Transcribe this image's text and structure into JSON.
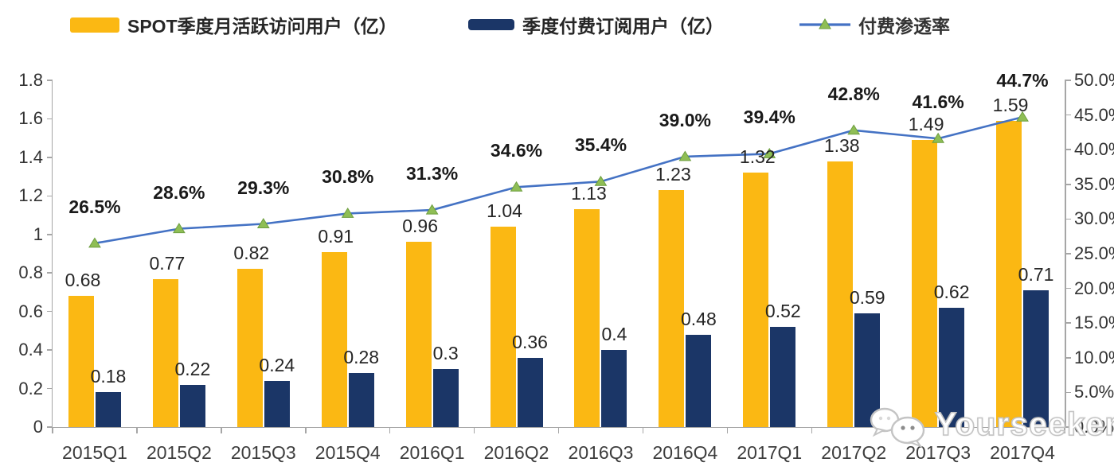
{
  "colors": {
    "bar_mau": "#FBB813",
    "bar_subs": "#1B3667",
    "line_penetration": "#4472C4",
    "marker_fill": "#8FBE55",
    "marker_stroke": "#6D9E3F",
    "axis": "#A6A6A6"
  },
  "watermark": {
    "label": "Yourseeker",
    "icon": "wechat-chat-bubbles"
  },
  "chart_data": {
    "type": "bar",
    "combo": "dual-axis bar + line",
    "grid": false,
    "legend_position": "top",
    "categories": [
      "2015Q1",
      "2015Q2",
      "2015Q3",
      "2015Q4",
      "2016Q1",
      "2016Q2",
      "2016Q3",
      "2016Q4",
      "2017Q1",
      "2017Q2",
      "2017Q3",
      "2017Q4"
    ],
    "series": [
      {
        "name": "SPOT季度月活跃访问用户（亿）",
        "type": "bar",
        "axis": "left",
        "color": "#FBB813",
        "values": [
          0.68,
          0.77,
          0.82,
          0.91,
          0.96,
          1.04,
          1.13,
          1.23,
          1.32,
          1.38,
          1.49,
          1.59
        ],
        "labels": [
          "0.68",
          "0.77",
          "0.82",
          "0.91",
          "0.96",
          "1.04",
          "1.13",
          "1.23",
          "1.32",
          "1.38",
          "1.49",
          "1.59"
        ]
      },
      {
        "name": "季度付费订阅用户（亿）",
        "type": "bar",
        "axis": "left",
        "color": "#1B3667",
        "values": [
          0.18,
          0.22,
          0.24,
          0.28,
          0.3,
          0.36,
          0.4,
          0.48,
          0.52,
          0.59,
          0.62,
          0.71
        ],
        "labels": [
          "0.18",
          "0.22",
          "0.24",
          "0.28",
          "0.3",
          "0.36",
          "0.4",
          "0.48",
          "0.52",
          "0.59",
          "0.62",
          "0.71"
        ]
      },
      {
        "name": "付费渗透率",
        "type": "line",
        "axis": "right",
        "color": "#4472C4",
        "marker": "triangle",
        "marker_color": "#8FBE55",
        "values": [
          26.5,
          28.6,
          29.3,
          30.8,
          31.3,
          34.6,
          35.4,
          39.0,
          39.4,
          42.8,
          41.6,
          44.7
        ],
        "labels": [
          "26.5%",
          "28.6%",
          "29.3%",
          "30.8%",
          "31.3%",
          "34.6%",
          "35.4%",
          "39.0%",
          "39.4%",
          "42.8%",
          "41.6%",
          "44.7%"
        ]
      }
    ],
    "left_axis": {
      "min": 0,
      "max": 1.8,
      "step": 0.2,
      "tick_values": [
        0,
        0.2,
        0.4,
        0.6,
        0.8,
        1,
        1.2,
        1.4,
        1.6,
        1.8
      ],
      "tick_labels": [
        "0",
        "0.2",
        "0.4",
        "0.6",
        "0.8",
        "1",
        "1.2",
        "1.4",
        "1.6",
        "1.8"
      ]
    },
    "right_axis": {
      "min": 0,
      "max": 50,
      "step": 5,
      "tick_values": [
        0,
        5,
        10,
        15,
        20,
        25,
        30,
        35,
        40,
        45,
        50
      ],
      "tick_labels": [
        "0.0%",
        "5.0%",
        "10.0%",
        "15.0%",
        "20.0%",
        "25.0%",
        "30.0%",
        "35.0%",
        "40.0%",
        "45.0%",
        "50.0%"
      ]
    }
  }
}
